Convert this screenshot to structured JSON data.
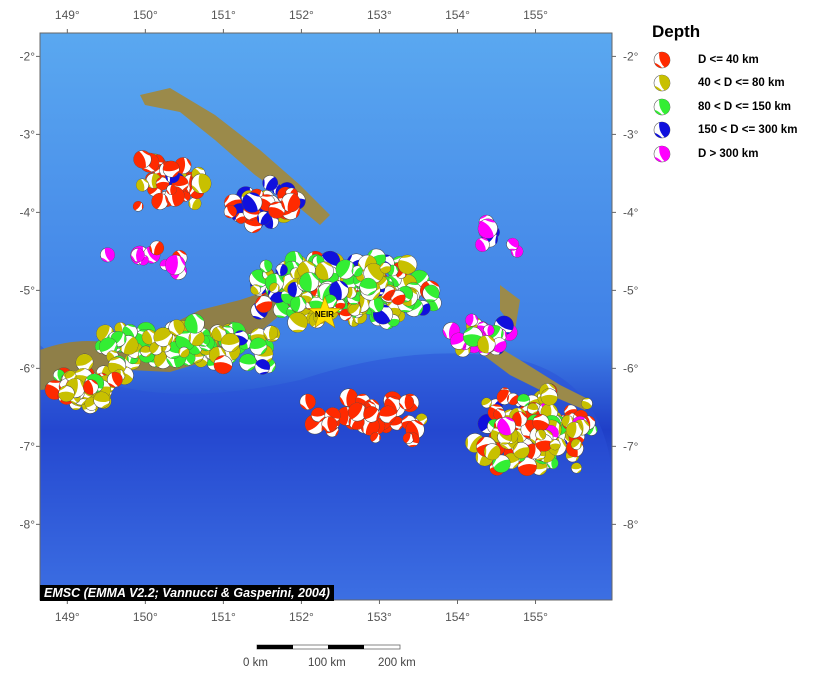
{
  "map": {
    "lon_range": [
      148.65,
      155.98
    ],
    "lat_range": [
      -8.97,
      -1.7
    ],
    "lon_ticks": [
      "149°",
      "150°",
      "151°",
      "152°",
      "153°",
      "154°",
      "155°"
    ],
    "lat_ticks": [
      "-2°",
      "-3°",
      "-4°",
      "-5°",
      "-6°",
      "-7°",
      "-8°"
    ],
    "station": {
      "label": "NEIR",
      "lon": 152.3,
      "lat": -5.3
    }
  },
  "legend": {
    "title": "Depth",
    "items": [
      {
        "label": "D <= 40 km",
        "color": "#ff2a00"
      },
      {
        "label": "40 < D <= 80 km",
        "color": "#c8c000"
      },
      {
        "label": "80 < D <= 150 km",
        "color": "#33ee33"
      },
      {
        "label": "150 < D <= 300 km",
        "color": "#1010dd"
      },
      {
        "label": "D > 300 km",
        "color": "#ff00ff"
      }
    ]
  },
  "credit": "EMSC (EMMA V2.2; Vannucci & Gasperini, 2004)",
  "scale_bar": {
    "labels": [
      "0 km",
      "100 km",
      "200 km"
    ]
  }
}
